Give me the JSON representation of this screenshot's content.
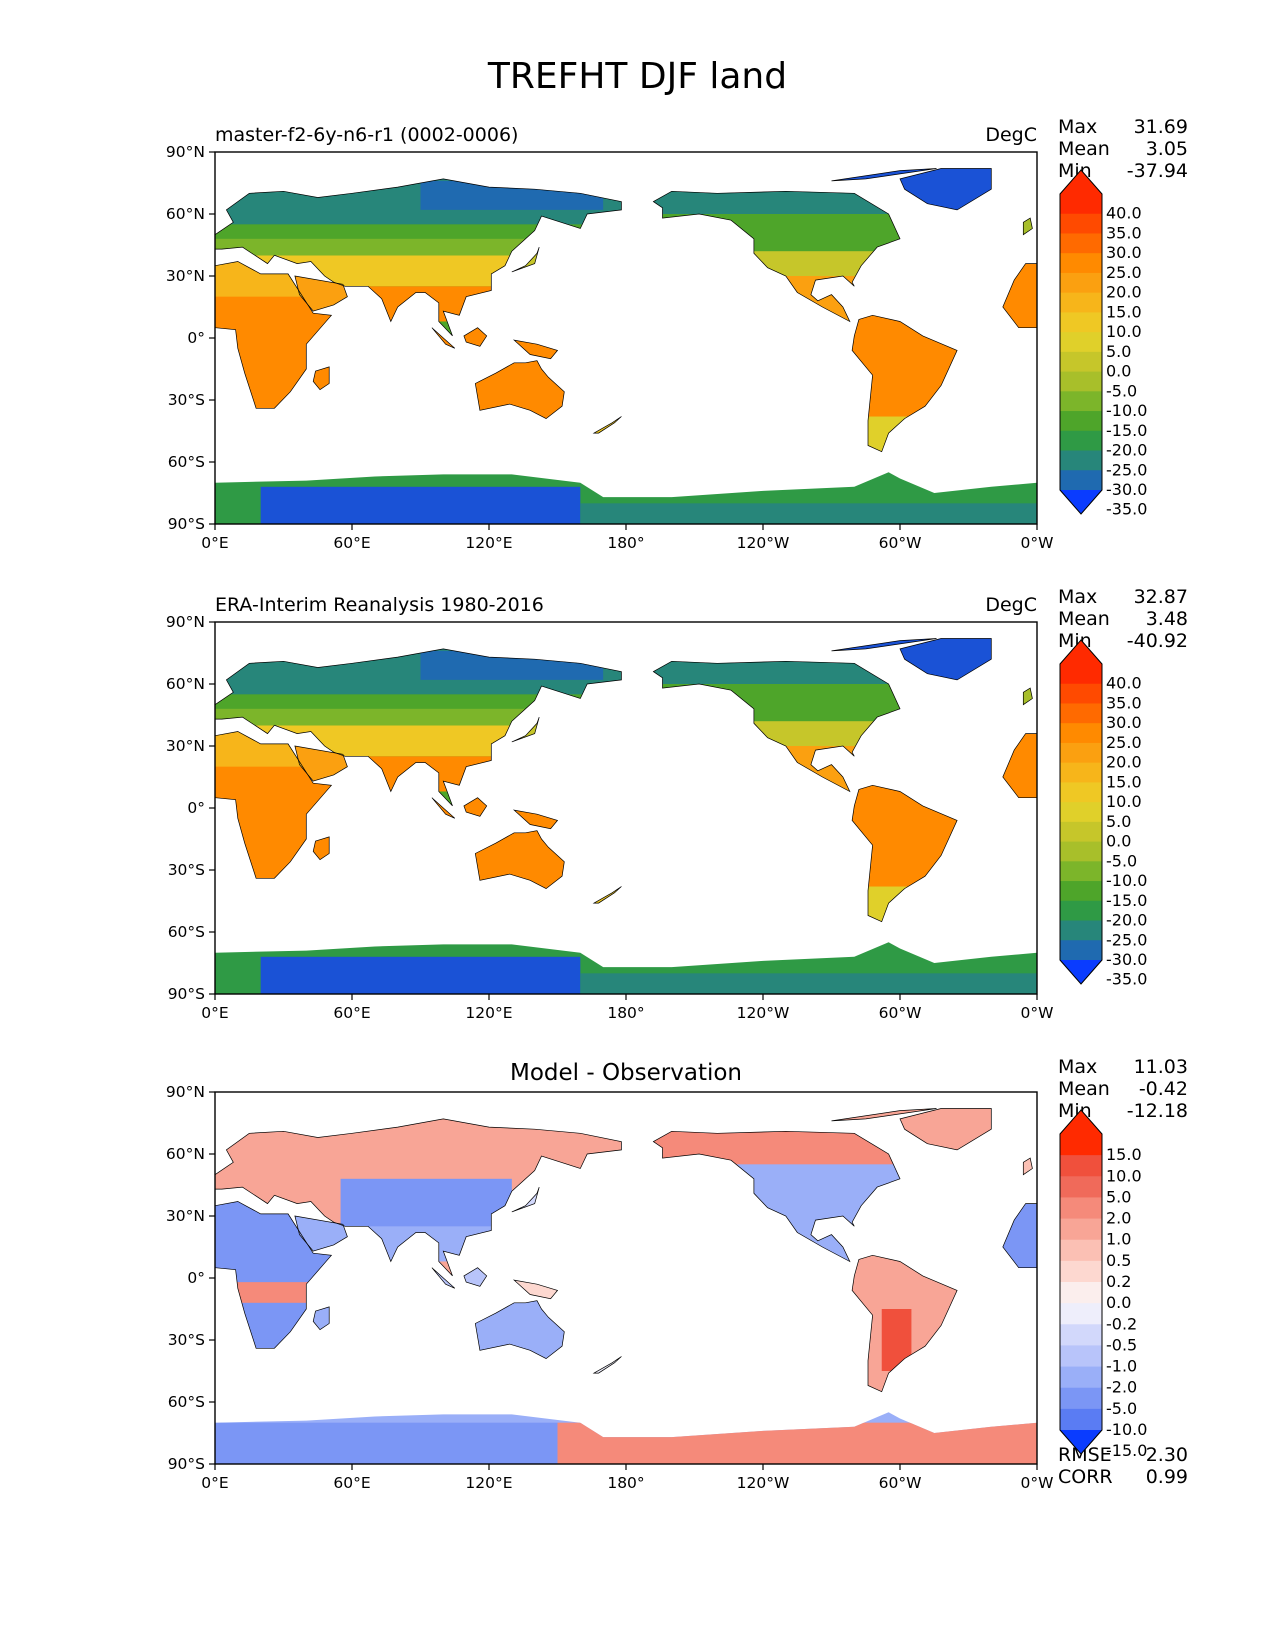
{
  "figure_title": "TREFHT DJF land",
  "panels": [
    {
      "title": "master-f2-6y-n6-r1 (0002-0006)",
      "title_align": "left",
      "units": "DegC",
      "stats": [
        {
          "label": "Max",
          "value": "31.69"
        },
        {
          "label": "Mean",
          "value": "3.05"
        },
        {
          "label": "Min",
          "value": "-37.94"
        }
      ]
    },
    {
      "title": "ERA-Interim Reanalysis 1980-2016",
      "title_align": "left",
      "units": "DegC",
      "stats": [
        {
          "label": "Max",
          "value": "32.87"
        },
        {
          "label": "Mean",
          "value": "3.48"
        },
        {
          "label": "Min",
          "value": "-40.92"
        }
      ]
    },
    {
      "title": "Model - Observation",
      "title_align": "center",
      "units": "",
      "stats": [
        {
          "label": "Max",
          "value": "11.03"
        },
        {
          "label": "Mean",
          "value": "-0.42"
        },
        {
          "label": "Min",
          "value": "-12.18"
        }
      ],
      "extra_stats": [
        {
          "label": "RMSE",
          "value": "2.30"
        },
        {
          "label": "CORR",
          "value": "0.99"
        }
      ]
    }
  ],
  "chart_data": [
    {
      "type": "heatmap",
      "title": "master-f2-6y-n6-r1 (0002-0006)",
      "projection": "cylindrical equidistant, centered 180°",
      "units": "DegC",
      "x_ticks": [
        "0°E",
        "60°E",
        "120°E",
        "180°",
        "120°W",
        "60°W",
        "0°W"
      ],
      "y_ticks": [
        "90°N",
        "60°N",
        "30°N",
        "0°",
        "30°S",
        "60°S",
        "90°S"
      ],
      "xlim": [
        0,
        360
      ],
      "ylim": [
        -90,
        90
      ],
      "colorbar": {
        "labels": [
          "40.0",
          "35.0",
          "30.0",
          "25.0",
          "20.0",
          "15.0",
          "10.0",
          "5.0",
          "0.0",
          "-5.0",
          "-10.0",
          "-15.0",
          "-20.0",
          "-25.0",
          "-30.0",
          "-35.0"
        ],
        "colors": [
          "#ff2a00",
          "#ff4a00",
          "#ff6a00",
          "#ff8a00",
          "#fba010",
          "#f7b51a",
          "#efc824",
          "#e0d02a",
          "#c6c62a",
          "#a8bf2a",
          "#7cb52a",
          "#4ea52a",
          "#2f9a45",
          "#27867a",
          "#1f6ab0",
          "#1a52d6",
          "#0a3cff"
        ],
        "extend": "both"
      },
      "stats": {
        "max": 31.69,
        "mean": 3.05,
        "min": -37.94
      }
    },
    {
      "type": "heatmap",
      "title": "ERA-Interim Reanalysis 1980-2016",
      "projection": "cylindrical equidistant, centered 180°",
      "units": "DegC",
      "x_ticks": [
        "0°E",
        "60°E",
        "120°E",
        "180°",
        "120°W",
        "60°W",
        "0°W"
      ],
      "y_ticks": [
        "90°N",
        "60°N",
        "30°N",
        "0°",
        "30°S",
        "60°S",
        "90°S"
      ],
      "xlim": [
        0,
        360
      ],
      "ylim": [
        -90,
        90
      ],
      "colorbar": {
        "labels": [
          "40.0",
          "35.0",
          "30.0",
          "25.0",
          "20.0",
          "15.0",
          "10.0",
          "5.0",
          "0.0",
          "-5.0",
          "-10.0",
          "-15.0",
          "-20.0",
          "-25.0",
          "-30.0",
          "-35.0"
        ],
        "colors": [
          "#ff2a00",
          "#ff4a00",
          "#ff6a00",
          "#ff8a00",
          "#fba010",
          "#f7b51a",
          "#efc824",
          "#e0d02a",
          "#c6c62a",
          "#a8bf2a",
          "#7cb52a",
          "#4ea52a",
          "#2f9a45",
          "#27867a",
          "#1f6ab0",
          "#1a52d6",
          "#0a3cff"
        ],
        "extend": "both"
      },
      "stats": {
        "max": 32.87,
        "mean": 3.48,
        "min": -40.92
      }
    },
    {
      "type": "heatmap",
      "title": "Model - Observation",
      "projection": "cylindrical equidistant, centered 180°",
      "x_ticks": [
        "0°E",
        "60°E",
        "120°E",
        "180°",
        "120°W",
        "60°W",
        "0°W"
      ],
      "y_ticks": [
        "90°N",
        "60°N",
        "30°N",
        "0°",
        "30°S",
        "60°S",
        "90°S"
      ],
      "xlim": [
        0,
        360
      ],
      "ylim": [
        -90,
        90
      ],
      "colorbar": {
        "labels": [
          "15.0",
          "10.0",
          "5.0",
          "2.0",
          "1.0",
          "0.5",
          "0.2",
          "0.0",
          "-0.2",
          "-0.5",
          "-1.0",
          "-2.0",
          "-5.0",
          "-10.0",
          "-15.0"
        ],
        "colors": [
          "#ff2a00",
          "#f0503c",
          "#f06a5a",
          "#f58a7a",
          "#f8a596",
          "#fbc0b4",
          "#fdd8d0",
          "#fbeeed",
          "#eeeefb",
          "#d2d8fb",
          "#b8c4fa",
          "#9aaff8",
          "#7b96f5",
          "#5a7cf3",
          "#3c62f5",
          "#0a3cff"
        ],
        "extend": "both"
      },
      "stats": {
        "max": 11.03,
        "mean": -0.42,
        "min": -12.18,
        "rmse": 2.3,
        "corr": 0.99
      }
    }
  ]
}
